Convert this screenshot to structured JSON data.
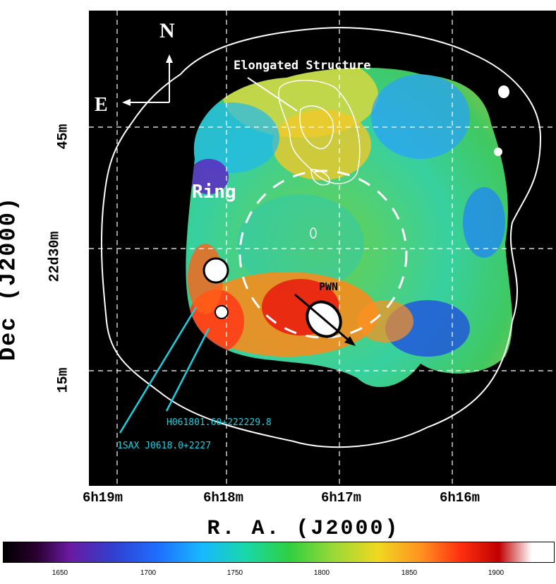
{
  "compass": {
    "north": "N",
    "east": "E"
  },
  "annotations": {
    "elongated_structure": "Elongated Structure",
    "ring": "Ring",
    "pwn": "PWN",
    "source1": "H061801.60+222229.8",
    "source2": "1SAX J0618.0+2227"
  },
  "axes": {
    "ylabel": "Dec (J2000)",
    "xlabel": "R. A. (J2000)",
    "yticks": [
      "45m",
      "22d30m",
      "15m"
    ],
    "xticks": [
      "6h19m",
      "6h18m",
      "6h17m",
      "6h16m"
    ]
  },
  "colorbar": {
    "ticks": [
      "1650",
      "1700",
      "1750",
      "1800",
      "1850",
      "1900"
    ]
  }
}
